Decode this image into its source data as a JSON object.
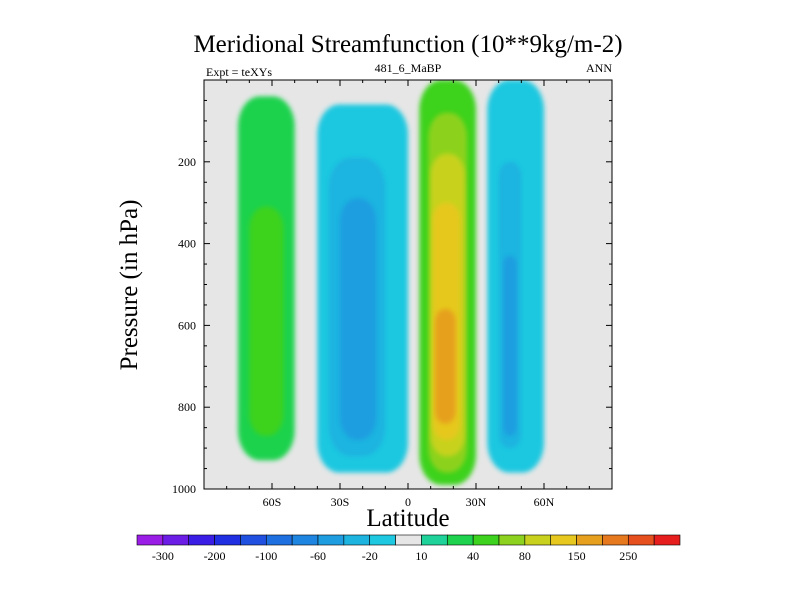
{
  "chart_data": {
    "type": "heatmap",
    "title": "Meridional Streamfunction (10**9kg/m-2)",
    "left_label": "Expt = teXYs",
    "center_label": "481_6_MaBP",
    "right_label": "ANN",
    "xlabel": "Latitude",
    "ylabel": "Pressure (in hPa)",
    "xlim": [
      -90,
      90
    ],
    "ylim": [
      1000,
      0
    ],
    "x_ticks": [
      -60,
      -30,
      0,
      30,
      60
    ],
    "x_tick_labels": [
      "60S",
      "30S",
      "0",
      "30N",
      "60N"
    ],
    "y_ticks": [
      200,
      400,
      600,
      800,
      1000
    ],
    "y_tick_labels": [
      "200",
      "400",
      "600",
      "800",
      "1000"
    ],
    "missing_color": "#e6e6e6",
    "colorbar": {
      "levels": [
        -300,
        -250,
        -200,
        -150,
        -100,
        -80,
        -60,
        -40,
        -20,
        -10,
        10,
        20,
        40,
        60,
        80,
        100,
        150,
        200,
        250,
        300
      ],
      "labels": [
        "-300",
        "-200",
        "-100",
        "-60",
        "-20",
        "10",
        "40",
        "80",
        "150",
        "250"
      ],
      "colors": [
        "#9b1ee6",
        "#6c1ee6",
        "#3a1ee6",
        "#1f2fe1",
        "#1f50e0",
        "#1e6fe0",
        "#1e86e0",
        "#1e9ee0",
        "#1eb4e0",
        "#1ec8e0",
        "#e6e6e6",
        "#1ed29a",
        "#1ed24e",
        "#3cd21e",
        "#8cd21e",
        "#c8d21e",
        "#e6c81e",
        "#e6a01e",
        "#e6781e",
        "#e6501e",
        "#e61e1e"
      ]
    },
    "fields": [
      {
        "name": "SH polar positive cell",
        "lat": [
          -75,
          -50
        ],
        "p": [
          40,
          930
        ],
        "value": 20
      },
      {
        "name": "SH polar positive core",
        "lat": [
          -70,
          -55
        ],
        "p": [
          310,
          870
        ],
        "value": 40
      },
      {
        "name": "SH Ferrel negative cell",
        "lat": [
          -40,
          0
        ],
        "p": [
          60,
          960
        ],
        "value": -20
      },
      {
        "name": "SH Ferrel negative core",
        "lat": [
          -35,
          -10
        ],
        "p": [
          190,
          920
        ],
        "value": -40
      },
      {
        "name": "SH Ferrel inner core",
        "lat": [
          -30,
          -14
        ],
        "p": [
          290,
          880
        ],
        "value": -60
      },
      {
        "name": "Hadley cell outer",
        "lat": [
          5,
          30
        ],
        "p": [
          0,
          990
        ],
        "value": 40
      },
      {
        "name": "Hadley cell",
        "lat": [
          9,
          26
        ],
        "p": [
          80,
          960
        ],
        "value": 60
      },
      {
        "name": "Hadley cell core",
        "lat": [
          10,
          25
        ],
        "p": [
          180,
          920
        ],
        "value": 80
      },
      {
        "name": "Hadley cell inner",
        "lat": [
          11,
          23
        ],
        "p": [
          300,
          880
        ],
        "value": 100
      },
      {
        "name": "Hadley cell center",
        "lat": [
          12,
          21
        ],
        "p": [
          560,
          840
        ],
        "value": 150
      },
      {
        "name": "NH Ferrel negative cell",
        "lat": [
          35,
          60
        ],
        "p": [
          0,
          960
        ],
        "value": -20
      },
      {
        "name": "NH Ferrel negative core",
        "lat": [
          40,
          50
        ],
        "p": [
          200,
          900
        ],
        "value": -40
      },
      {
        "name": "NH Ferrel inner core",
        "lat": [
          42,
          48
        ],
        "p": [
          430,
          870
        ],
        "value": -60
      }
    ]
  }
}
